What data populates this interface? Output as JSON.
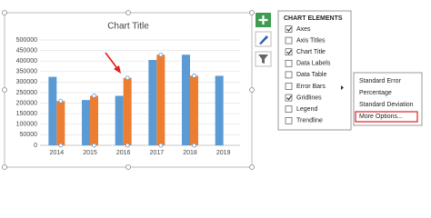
{
  "chart_data": {
    "type": "bar",
    "title": "Chart Title",
    "categories": [
      "2014",
      "2015",
      "2016",
      "2017",
      "2018",
      "2019"
    ],
    "series": [
      {
        "color": "#5b9bd5",
        "values": [
          325000,
          215000,
          235000,
          405000,
          430000,
          330000
        ]
      },
      {
        "color": "#ed7d31",
        "values": [
          210000,
          235000,
          320000,
          430000,
          330000,
          null
        ]
      }
    ],
    "ylim": [
      0,
      500000
    ],
    "yticks": [
      0,
      50000,
      100000,
      150000,
      200000,
      250000,
      300000,
      350000,
      400000,
      450000,
      500000
    ],
    "grid": true
  },
  "panel": {
    "title": "CHART ELEMENTS",
    "items": [
      {
        "label": "Axes",
        "checked": true
      },
      {
        "label": "Axis Titles",
        "checked": false
      },
      {
        "label": "Chart Title",
        "checked": true
      },
      {
        "label": "Data Labels",
        "checked": false
      },
      {
        "label": "Data Table",
        "checked": false
      },
      {
        "label": "Error Bars",
        "checked": false
      },
      {
        "label": "Gridlines",
        "checked": true
      },
      {
        "label": "Legend",
        "checked": false
      },
      {
        "label": "Trendline",
        "checked": false
      }
    ]
  },
  "submenu": {
    "items": [
      "Standard Error",
      "Percentage",
      "Standard Deviation",
      "More Options..."
    ]
  }
}
